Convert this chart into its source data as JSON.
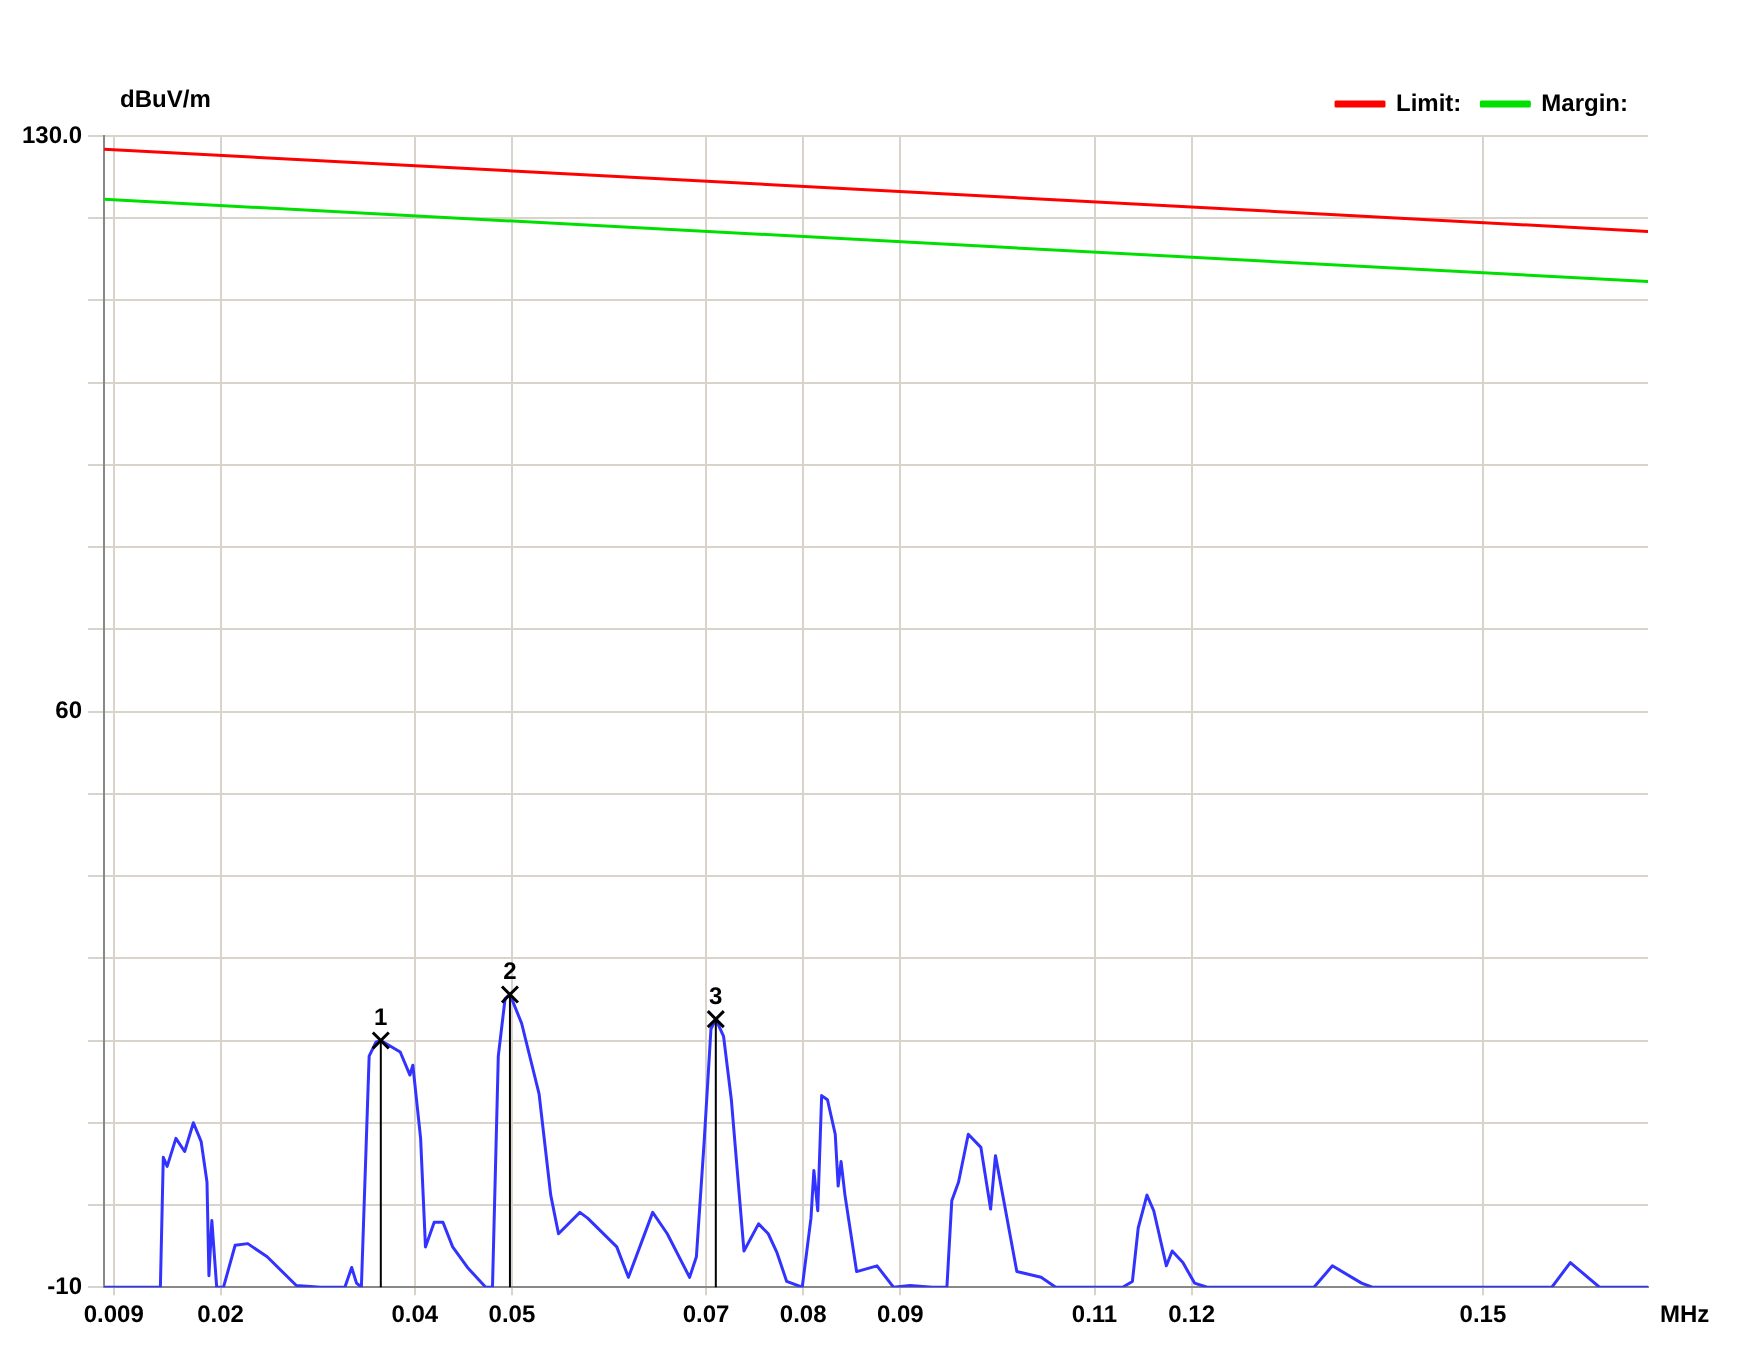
{
  "chart_data": {
    "type": "line",
    "xlabel": "MHz",
    "ylabel": "dBuV/m",
    "xlim": [
      0.008,
      0.167
    ],
    "ylim": [
      -10,
      130
    ],
    "xticks": [
      0.009,
      0.02,
      0.04,
      0.05,
      0.07,
      0.08,
      0.09,
      0.11,
      0.12,
      0.15
    ],
    "yticks": [
      -10,
      {
        "value": 0,
        "label": null
      },
      {
        "value": 10,
        "label": null
      },
      {
        "value": 20,
        "label": null
      },
      {
        "value": 30,
        "label": null
      },
      {
        "value": 40,
        "label": null
      },
      {
        "value": 50,
        "label": null
      },
      60,
      {
        "value": 70,
        "label": null
      },
      {
        "value": 80,
        "label": null
      },
      {
        "value": 90,
        "label": null
      },
      {
        "value": 100,
        "label": null
      },
      {
        "value": 110,
        "label": null
      },
      {
        "value": 120,
        "label": null
      },
      {
        "value": 130,
        "label": "130.0"
      }
    ],
    "grid": true,
    "legend": "top right",
    "marker": "none",
    "line_style": "solid",
    "series": [
      {
        "name": "Limit:",
        "color": "#ff0000",
        "x": [
          0.008,
          0.167
        ],
        "values": [
          128.4,
          118.4
        ]
      },
      {
        "name": "Margin:",
        "color": "#00e000",
        "x": [
          0.008,
          0.167
        ],
        "values": [
          122.3,
          112.3
        ]
      },
      {
        "color": "#3333ff",
        "x": [
          0.008,
          0.0138,
          0.0141,
          0.0145,
          0.0154,
          0.0163,
          0.0172,
          0.018,
          0.0186,
          0.0188,
          0.0191,
          0.0196,
          0.0203,
          0.0215,
          0.0228,
          0.0248,
          0.0278,
          0.0303,
          0.0328,
          0.0335,
          0.034,
          0.0345,
          0.0353,
          0.036,
          0.0365,
          0.0385,
          0.0395,
          0.0398,
          0.0406,
          0.0411,
          0.042,
          0.0429,
          0.0439,
          0.0455,
          0.0473,
          0.048,
          0.0486,
          0.0493,
          0.0498,
          0.051,
          0.0528,
          0.054,
          0.0548,
          0.057,
          0.0578,
          0.0608,
          0.062,
          0.0645,
          0.066,
          0.0683,
          0.069,
          0.0698,
          0.0705,
          0.071,
          0.0718,
          0.0726,
          0.0739,
          0.0754,
          0.0764,
          0.0773,
          0.0783,
          0.0799,
          0.0808,
          0.0811,
          0.0815,
          0.0819,
          0.0825,
          0.0833,
          0.0836,
          0.0839,
          0.0843,
          0.0855,
          0.0876,
          0.0893,
          0.091,
          0.0933,
          0.0948,
          0.0953,
          0.096,
          0.097,
          0.0983,
          0.0993,
          0.0998,
          0.102,
          0.1045,
          0.106,
          0.1116,
          0.112,
          0.1129,
          0.1139,
          0.1145,
          0.1154,
          0.1161,
          0.1174,
          0.118,
          0.1191,
          0.1203,
          0.1216,
          0.1326,
          0.1345,
          0.1375,
          0.1386,
          0.1571,
          0.159,
          0.162,
          0.1631,
          0.167
        ],
        "values": [
          -10,
          -10,
          5.8,
          4.7,
          8.1,
          6.5,
          10,
          7.7,
          2.8,
          -8.6,
          -1.9,
          -10,
          -10,
          -4.9,
          -4.7,
          -6.3,
          -9.8,
          -10,
          -10,
          -7.6,
          -9.5,
          -10,
          18.1,
          19.8,
          20,
          18.6,
          15.8,
          17,
          8.1,
          -5.1,
          -2.1,
          -2.1,
          -5.1,
          -7.7,
          -10,
          -10,
          18.1,
          25.1,
          25.6,
          22.1,
          13.5,
          1.2,
          -3.5,
          -0.9,
          -1.6,
          -5.1,
          -8.8,
          -0.9,
          -3.5,
          -8.8,
          -6.3,
          7.7,
          21.4,
          22.6,
          20.5,
          12.8,
          -5.6,
          -2.3,
          -3.5,
          -5.8,
          -9.3,
          -10,
          -1.6,
          4.2,
          -0.7,
          13.3,
          12.8,
          8.6,
          2.3,
          5.3,
          1.2,
          -8.1,
          -7.4,
          -10,
          -9.8,
          -10,
          -10,
          0.5,
          2.8,
          8.6,
          7,
          -0.5,
          6,
          -8.1,
          -8.8,
          -10,
          -10,
          -10,
          -10,
          -9.3,
          -2.8,
          1.2,
          -0.7,
          -7.4,
          -5.6,
          -7,
          -9.5,
          -10,
          -10,
          -7.4,
          -9.5,
          -10,
          -10,
          -7,
          -10,
          -10,
          -10
        ]
      }
    ],
    "annotations": [
      {
        "text": "1",
        "x": 0.0365,
        "y": 20
      },
      {
        "text": "2",
        "x": 0.0498,
        "y": 25.6
      },
      {
        "text": "3",
        "x": 0.071,
        "y": 22.6
      }
    ]
  }
}
